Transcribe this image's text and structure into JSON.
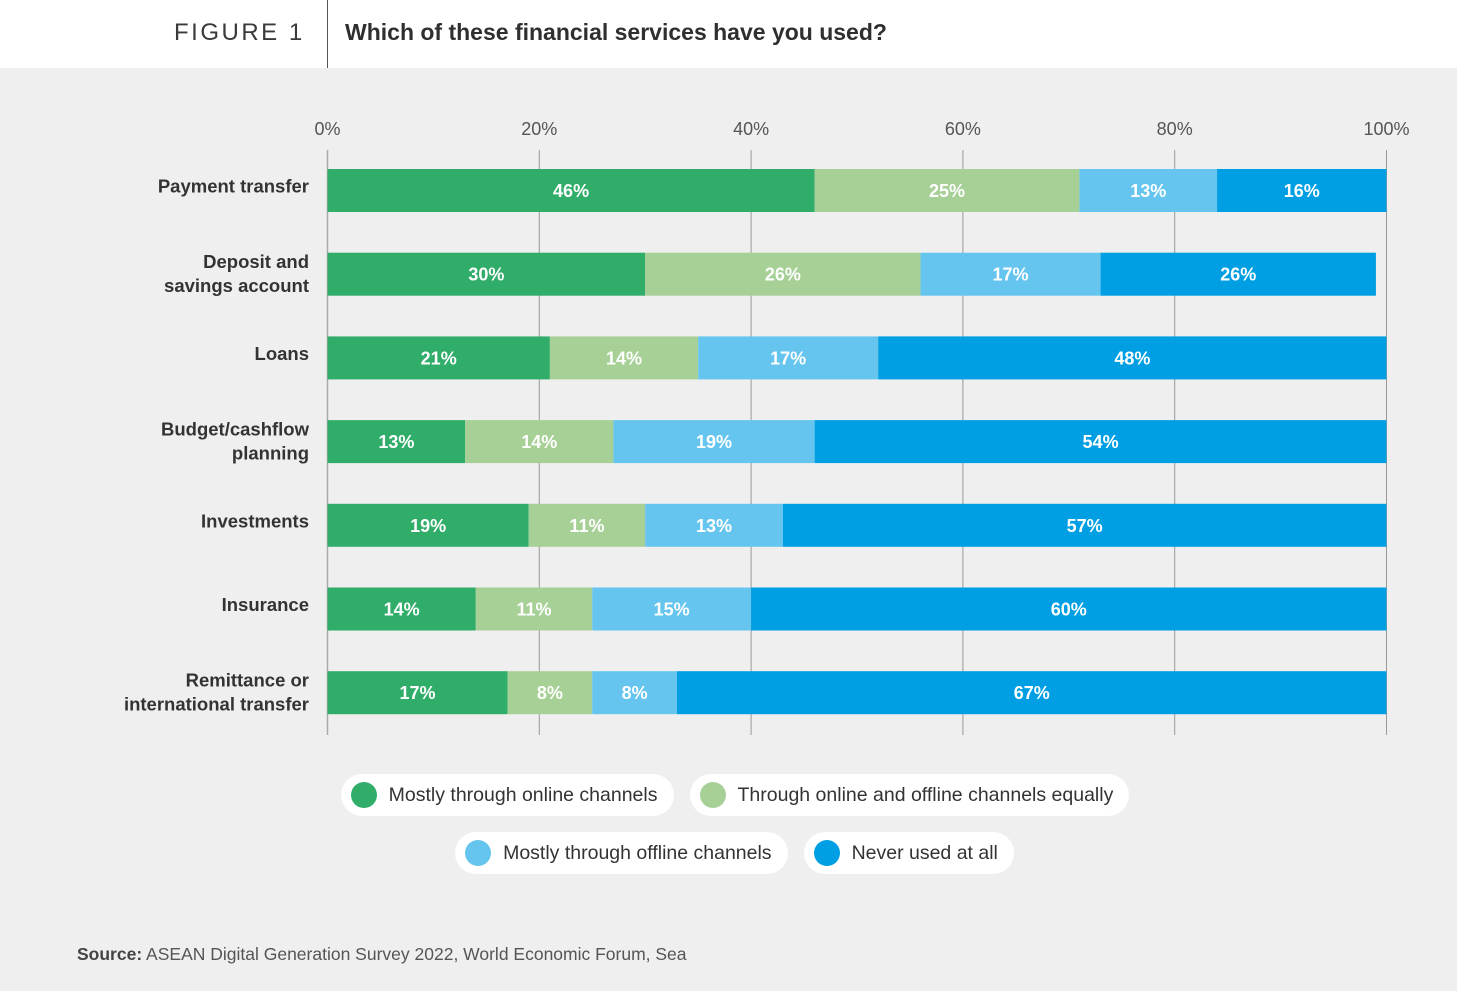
{
  "header": {
    "figure_label": "FIGURE 1",
    "title": "Which of these financial services have you used?"
  },
  "chart_data": {
    "type": "bar",
    "orientation": "horizontal",
    "stacked": true,
    "title": "Which of these financial services have you used?",
    "xlabel": "",
    "ylabel": "",
    "xlim": [
      0,
      100
    ],
    "x_ticks": [
      0,
      20,
      40,
      60,
      80,
      100
    ],
    "x_tick_labels": [
      "0%",
      "20%",
      "40%",
      "60%",
      "80%",
      "100%"
    ],
    "x_axis_position": "top",
    "grid": true,
    "legend_position": "bottom",
    "categories": [
      [
        "Payment transfer"
      ],
      [
        "Deposit and",
        "savings account"
      ],
      [
        "Loans"
      ],
      [
        "Budget/cashflow",
        "planning"
      ],
      [
        "Investments"
      ],
      [
        "Insurance"
      ],
      [
        "Remittance or",
        "international transfer"
      ]
    ],
    "series": [
      {
        "name": "Mostly through online channels",
        "color": "#31ad6a",
        "values": [
          46,
          30,
          21,
          13,
          19,
          14,
          17
        ]
      },
      {
        "name": "Through online and offline channels equally",
        "color": "#a7d097",
        "values": [
          25,
          26,
          14,
          14,
          11,
          11,
          8
        ]
      },
      {
        "name": "Mostly through offline channels",
        "color": "#66c5ef",
        "values": [
          13,
          17,
          17,
          19,
          13,
          15,
          8
        ]
      },
      {
        "name": "Never used at all",
        "color": "#009fe3",
        "values": [
          16,
          26,
          48,
          54,
          57,
          60,
          67
        ]
      }
    ],
    "value_label_suffix": "%"
  },
  "legend": {
    "items": [
      {
        "label": "Mostly through online channels",
        "color": "#31ad6a"
      },
      {
        "label": "Through online and offline channels equally",
        "color": "#a7d097"
      },
      {
        "label": "Mostly through offline channels",
        "color": "#66c5ef"
      },
      {
        "label": "Never used at all",
        "color": "#009fe3"
      }
    ]
  },
  "source": {
    "prefix": "Source:",
    "text": " ASEAN Digital Generation Survey 2022, World Economic Forum, Sea"
  }
}
